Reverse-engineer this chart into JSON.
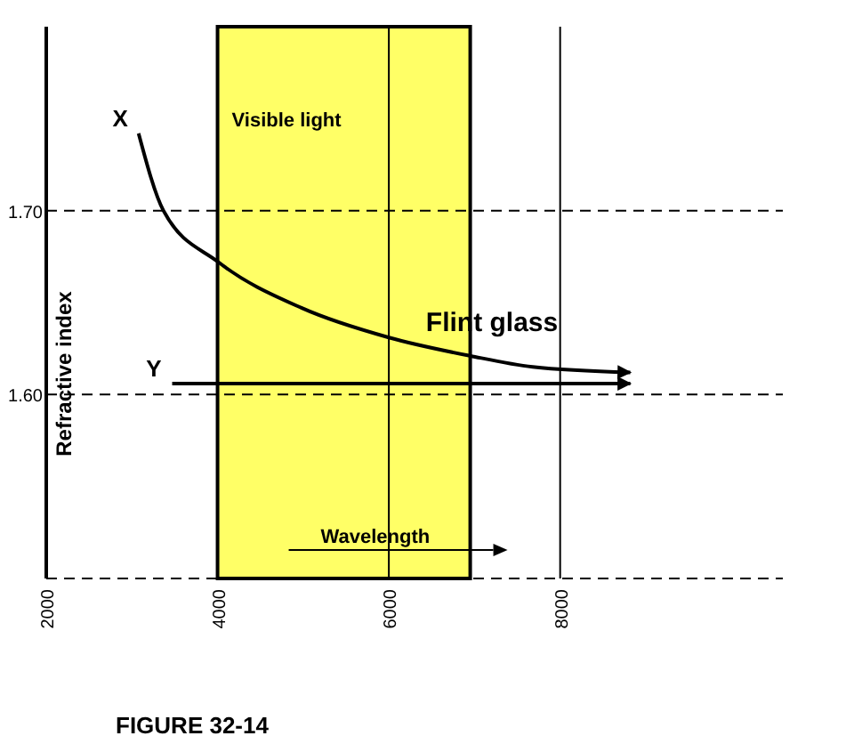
{
  "chart_data": {
    "type": "line",
    "ylabel": "Refractive index",
    "xlabel": "Wavelength",
    "x": [
      3078,
      3368,
      4010,
      4985,
      6000,
      6953,
      7679,
      8819
    ],
    "series": [
      {
        "name": "Flint glass",
        "color": "#000000",
        "values": [
          1.742,
          1.7,
          1.672,
          1.647,
          1.631,
          1.621,
          1.615,
          1.612
        ]
      },
      {
        "type": "line",
        "color": "#000000",
        "x": [
          3470,
          8819
        ],
        "values": [
          1.606,
          1.606
        ]
      }
    ],
    "xlim": [
      2000,
      10600
    ],
    "xticks": [
      2000,
      4000,
      6000,
      8000
    ],
    "ylim": [
      1.5,
      1.8
    ],
    "yticks": [
      {
        "value": 1.6,
        "label": "1.60"
      },
      {
        "value": 1.7,
        "label": "1.70"
      }
    ],
    "marker": "none",
    "line_style": "solid",
    "ref_lines": [
      {
        "axis": "x",
        "value": 6000,
        "line_style": "solid"
      },
      {
        "axis": "x",
        "value": 8000,
        "line_style": "solid"
      },
      {
        "axis": "y",
        "value": 1.6,
        "line_style": "dashed"
      },
      {
        "axis": "y",
        "value": 1.7,
        "line_style": "dashed"
      }
    ],
    "bands": [
      {
        "axis": "x",
        "from": 4000,
        "to": 6950,
        "label": "Visible light",
        "color": "#ffff66"
      }
    ],
    "annotations": [
      {
        "text": "X",
        "x": 3078,
        "y": 1.742
      },
      {
        "text": "Y",
        "x": 3470,
        "y": 1.606
      },
      "FIGURE 32-14"
    ]
  }
}
